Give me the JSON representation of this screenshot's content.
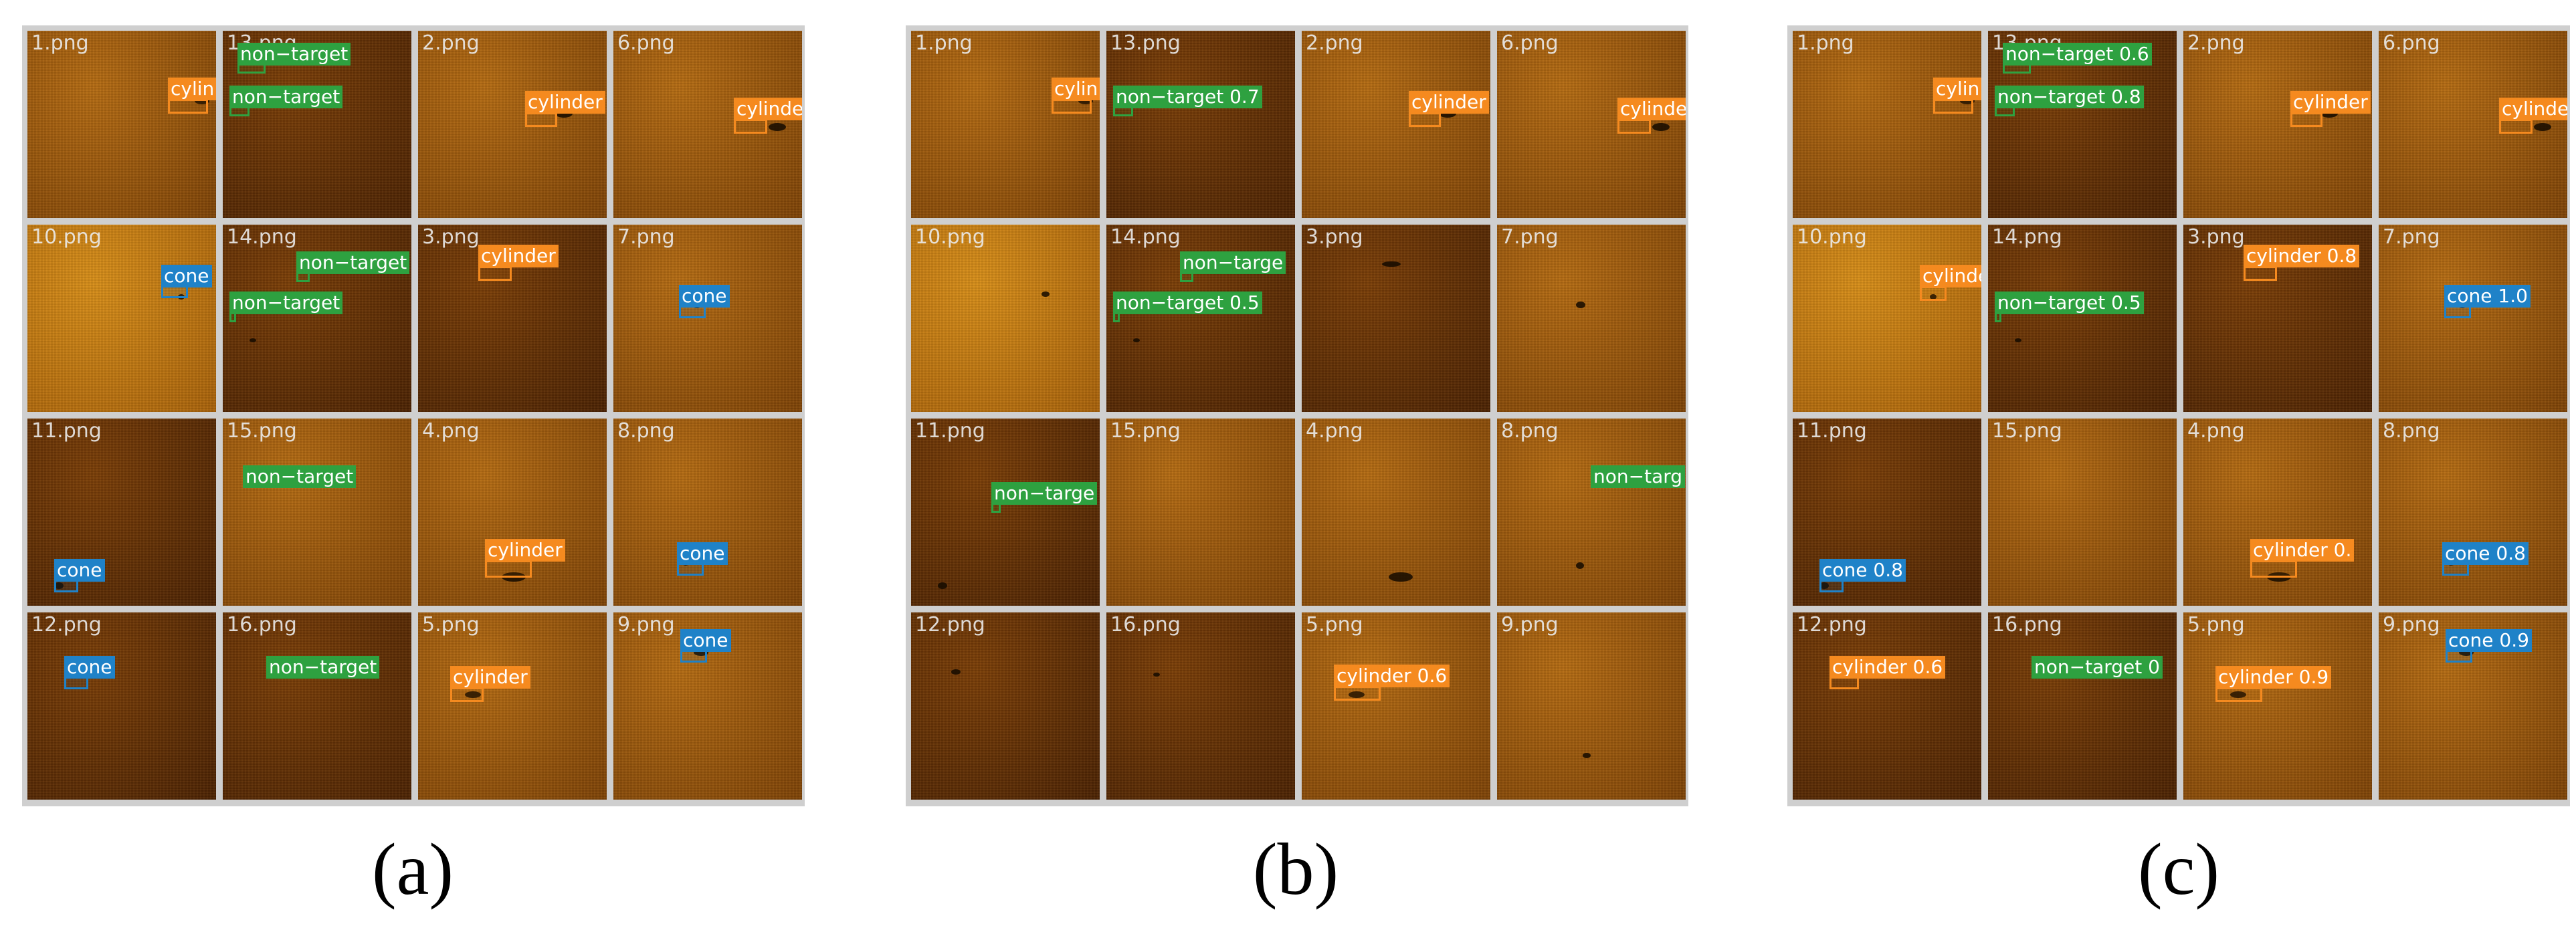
{
  "colors": {
    "cylinder": "#f58a1f",
    "cone": "#1f82c8",
    "non-target": "#2ea140",
    "grid_line": "#cfcfcf"
  },
  "panels": [
    {
      "caption": "(a)",
      "tiles": [
        {
          "name": "1.png",
          "shade": "mid",
          "detections": [
            {
              "label": "cylinder",
              "text": "cylin"
            }
          ]
        },
        {
          "name": "13.png",
          "shade": "dark",
          "detections": [
            {
              "label": "non-target",
              "text": "non−target"
            },
            {
              "label": "non-target",
              "text": "non−target"
            }
          ]
        },
        {
          "name": "2.png",
          "shade": "mid",
          "detections": [
            {
              "label": "cylinder",
              "text": "cylinder"
            }
          ]
        },
        {
          "name": "6.png",
          "shade": "mid",
          "detections": [
            {
              "label": "cylinder",
              "text": "cylinder"
            }
          ]
        },
        {
          "name": "10.png",
          "shade": "light",
          "detections": [
            {
              "label": "cone",
              "text": "cone"
            }
          ]
        },
        {
          "name": "14.png",
          "shade": "dark",
          "detections": [
            {
              "label": "non-target",
              "text": "non−target"
            },
            {
              "label": "non-target",
              "text": "non−target"
            }
          ]
        },
        {
          "name": "3.png",
          "shade": "dark",
          "detections": [
            {
              "label": "cylinder",
              "text": "cylinder"
            }
          ]
        },
        {
          "name": "7.png",
          "shade": "mid",
          "detections": [
            {
              "label": "cone",
              "text": "cone"
            }
          ]
        },
        {
          "name": "11.png",
          "shade": "dark",
          "detections": [
            {
              "label": "cone",
              "text": "cone"
            }
          ]
        },
        {
          "name": "15.png",
          "shade": "mid",
          "detections": [
            {
              "label": "non-target",
              "text": "non−target"
            }
          ]
        },
        {
          "name": "4.png",
          "shade": "mid",
          "detections": [
            {
              "label": "cylinder",
              "text": "cylinder"
            }
          ]
        },
        {
          "name": "8.png",
          "shade": "mid",
          "detections": [
            {
              "label": "cone",
              "text": "cone"
            }
          ]
        },
        {
          "name": "12.png",
          "shade": "dark",
          "detections": [
            {
              "label": "cone",
              "text": "cone"
            }
          ]
        },
        {
          "name": "16.png",
          "shade": "dark",
          "detections": [
            {
              "label": "non-target",
              "text": "non−target"
            }
          ]
        },
        {
          "name": "5.png",
          "shade": "mid",
          "detections": [
            {
              "label": "cylinder",
              "text": "cylinder"
            }
          ]
        },
        {
          "name": "9.png",
          "shade": "mid",
          "detections": [
            {
              "label": "cone",
              "text": "cone"
            }
          ]
        }
      ]
    },
    {
      "caption": "(b)",
      "tiles": [
        {
          "name": "1.png",
          "shade": "mid",
          "detections": [
            {
              "label": "cylinder",
              "text": "cylin"
            }
          ]
        },
        {
          "name": "13.png",
          "shade": "dark",
          "detections": [
            {
              "label": "non-target",
              "text": "non−target 0.7"
            }
          ]
        },
        {
          "name": "2.png",
          "shade": "mid",
          "detections": [
            {
              "label": "cylinder",
              "text": "cylinder"
            }
          ]
        },
        {
          "name": "6.png",
          "shade": "mid",
          "detections": [
            {
              "label": "cylinder",
              "text": "cylinde"
            }
          ]
        },
        {
          "name": "10.png",
          "shade": "light",
          "detections": []
        },
        {
          "name": "14.png",
          "shade": "dark",
          "detections": [
            {
              "label": "non-target",
              "text": "non−targe"
            },
            {
              "label": "non-target",
              "text": "non−target 0.5"
            }
          ]
        },
        {
          "name": "3.png",
          "shade": "dark",
          "detections": []
        },
        {
          "name": "7.png",
          "shade": "mid",
          "detections": []
        },
        {
          "name": "11.png",
          "shade": "dark",
          "detections": [
            {
              "label": "non-target",
              "text": "non−targe"
            }
          ]
        },
        {
          "name": "15.png",
          "shade": "mid",
          "detections": []
        },
        {
          "name": "4.png",
          "shade": "mid",
          "detections": []
        },
        {
          "name": "8.png",
          "shade": "mid",
          "detections": [
            {
              "label": "non-target",
              "text": "non−targ"
            }
          ]
        },
        {
          "name": "12.png",
          "shade": "dark",
          "detections": []
        },
        {
          "name": "16.png",
          "shade": "dark",
          "detections": []
        },
        {
          "name": "5.png",
          "shade": "mid",
          "detections": [
            {
              "label": "cylinder",
              "text": "cylinder 0.6"
            }
          ]
        },
        {
          "name": "9.png",
          "shade": "mid",
          "detections": []
        }
      ]
    },
    {
      "caption": "(c)",
      "tiles": [
        {
          "name": "1.png",
          "shade": "mid",
          "detections": [
            {
              "label": "cylinder",
              "text": "cylin"
            }
          ]
        },
        {
          "name": "13.png",
          "shade": "dark",
          "detections": [
            {
              "label": "non-target",
              "text": "non−target 0.6"
            },
            {
              "label": "non-target",
              "text": "non−target 0.8"
            }
          ]
        },
        {
          "name": "2.png",
          "shade": "mid",
          "detections": [
            {
              "label": "cylinder",
              "text": "cylinder"
            }
          ]
        },
        {
          "name": "6.png",
          "shade": "mid",
          "detections": [
            {
              "label": "cylinder",
              "text": "cylinde"
            }
          ]
        },
        {
          "name": "10.png",
          "shade": "light",
          "detections": [
            {
              "label": "cylinder",
              "text": "cylinde"
            }
          ]
        },
        {
          "name": "14.png",
          "shade": "dark",
          "detections": [
            {
              "label": "non-target",
              "text": "non−target 0.5"
            }
          ]
        },
        {
          "name": "3.png",
          "shade": "dark",
          "detections": [
            {
              "label": "cylinder",
              "text": "cylinder 0.8"
            }
          ]
        },
        {
          "name": "7.png",
          "shade": "mid",
          "detections": [
            {
              "label": "cone",
              "text": "cone 1.0"
            }
          ]
        },
        {
          "name": "11.png",
          "shade": "dark",
          "detections": [
            {
              "label": "cone",
              "text": "cone 0.8"
            }
          ]
        },
        {
          "name": "15.png",
          "shade": "mid",
          "detections": []
        },
        {
          "name": "4.png",
          "shade": "mid",
          "detections": [
            {
              "label": "cylinder",
              "text": "cylinder 0."
            }
          ]
        },
        {
          "name": "8.png",
          "shade": "mid",
          "detections": [
            {
              "label": "cone",
              "text": "cone 0.8"
            }
          ]
        },
        {
          "name": "12.png",
          "shade": "dark",
          "detections": [
            {
              "label": "cylinder",
              "text": "cylinder 0.6"
            }
          ]
        },
        {
          "name": "16.png",
          "shade": "dark",
          "detections": [
            {
              "label": "non-target",
              "text": "non−target 0"
            }
          ]
        },
        {
          "name": "5.png",
          "shade": "mid",
          "detections": [
            {
              "label": "cylinder",
              "text": "cylinder 0.9"
            }
          ]
        },
        {
          "name": "9.png",
          "shade": "mid",
          "detections": [
            {
              "label": "cone",
              "text": "cone 0.9"
            }
          ]
        }
      ]
    }
  ]
}
